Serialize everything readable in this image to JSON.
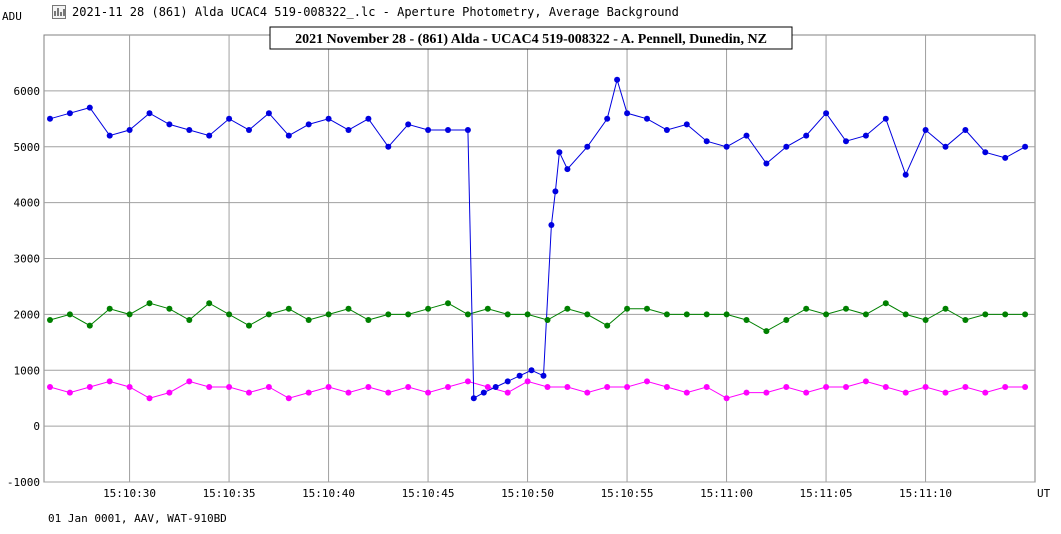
{
  "window": {
    "title": "2021-11 28 (861) Alda UCAC4 519-008322_.lc - Aperture Photometry, Average Background",
    "icon": "chart-icon"
  },
  "footer": "01 Jan 0001, AAV, WAT-910BD",
  "chart_data": {
    "type": "scatter",
    "title": "2021 November 28 - (861) Alda - UCAC4 519-008322 - A. Pennell, Dunedin, NZ",
    "ylabel": "ADU",
    "xunit": "UT",
    "xlim": [
      25.7,
      75.5
    ],
    "ylim": [
      -1000,
      7000
    ],
    "y_ticks": [
      -1000,
      0,
      1000,
      2000,
      3000,
      4000,
      5000,
      6000
    ],
    "x_ticks": [
      {
        "t": 30,
        "label": "15:10:30"
      },
      {
        "t": 35,
        "label": "15:10:35"
      },
      {
        "t": 40,
        "label": "15:10:40"
      },
      {
        "t": 45,
        "label": "15:10:45"
      },
      {
        "t": 50,
        "label": "15:10:50"
      },
      {
        "t": 55,
        "label": "15:10:55"
      },
      {
        "t": 60,
        "label": "15:11:00"
      },
      {
        "t": 65,
        "label": "15:11:05"
      },
      {
        "t": 70,
        "label": "15:11:10"
      }
    ],
    "grid": true,
    "colors": {
      "target": "#0000e0",
      "comparison": "#008000",
      "background": "#ff00ff",
      "grid": "#a0a0a0"
    },
    "series": [
      {
        "key": "target",
        "x": [
          26,
          27,
          28,
          29,
          30,
          31,
          32,
          33,
          34,
          35,
          36,
          37,
          38,
          39,
          40,
          41,
          42,
          43,
          44,
          45,
          46,
          47,
          47.3,
          47.8,
          48.4,
          49.0,
          49.6,
          50.2,
          50.8,
          51.2,
          51.4,
          51.6,
          52,
          53,
          54,
          54.5,
          55,
          56,
          57,
          58,
          59,
          60,
          61,
          62,
          63,
          64,
          65,
          66,
          67,
          68,
          69,
          70,
          71,
          72,
          73,
          74,
          75
        ],
        "y": [
          5500,
          5600,
          5700,
          5200,
          5300,
          5600,
          5400,
          5300,
          5200,
          5500,
          5300,
          5600,
          5200,
          5400,
          5500,
          5300,
          5500,
          5000,
          5400,
          5300,
          5300,
          5300,
          500,
          600,
          700,
          800,
          900,
          1000,
          900,
          3600,
          4200,
          4900,
          4600,
          5000,
          5500,
          6200,
          5600,
          5500,
          5300,
          5400,
          5100,
          5000,
          5200,
          4700,
          5000,
          5200,
          5600,
          5100,
          5200,
          5500,
          4500,
          5300,
          5000,
          5300,
          4900,
          4800,
          5000
        ]
      },
      {
        "key": "comparison",
        "x": [
          26,
          27,
          28,
          29,
          30,
          31,
          32,
          33,
          34,
          35,
          36,
          37,
          38,
          39,
          40,
          41,
          42,
          43,
          44,
          45,
          46,
          47,
          48,
          49,
          50,
          51,
          52,
          53,
          54,
          55,
          56,
          57,
          58,
          59,
          60,
          61,
          62,
          63,
          64,
          65,
          66,
          67,
          68,
          69,
          70,
          71,
          72,
          73,
          74,
          75
        ],
        "y": [
          1900,
          2000,
          1800,
          2100,
          2000,
          2200,
          2100,
          1900,
          2200,
          2000,
          1800,
          2000,
          2100,
          1900,
          2000,
          2100,
          1900,
          2000,
          2000,
          2100,
          2200,
          2000,
          2100,
          2000,
          2000,
          1900,
          2100,
          2000,
          1800,
          2100,
          2100,
          2000,
          2000,
          2000,
          2000,
          1900,
          1700,
          1900,
          2100,
          2000,
          2100,
          2000,
          2200,
          2000,
          1900,
          2100,
          1900,
          2000,
          2000,
          2000
        ]
      },
      {
        "key": "background",
        "x": [
          26,
          27,
          28,
          29,
          30,
          31,
          32,
          33,
          34,
          35,
          36,
          37,
          38,
          39,
          40,
          41,
          42,
          43,
          44,
          45,
          46,
          47,
          48,
          49,
          50,
          51,
          52,
          53,
          54,
          55,
          56,
          57,
          58,
          59,
          60,
          61,
          62,
          63,
          64,
          65,
          66,
          67,
          68,
          69,
          70,
          71,
          72,
          73,
          74,
          75
        ],
        "y": [
          700,
          600,
          700,
          800,
          700,
          500,
          600,
          800,
          700,
          700,
          600,
          700,
          500,
          600,
          700,
          600,
          700,
          600,
          700,
          600,
          700,
          800,
          700,
          600,
          800,
          700,
          700,
          600,
          700,
          700,
          800,
          700,
          600,
          700,
          500,
          600,
          600,
          700,
          600,
          700,
          700,
          800,
          700,
          600,
          700,
          600,
          700,
          600,
          700,
          700
        ]
      }
    ]
  }
}
